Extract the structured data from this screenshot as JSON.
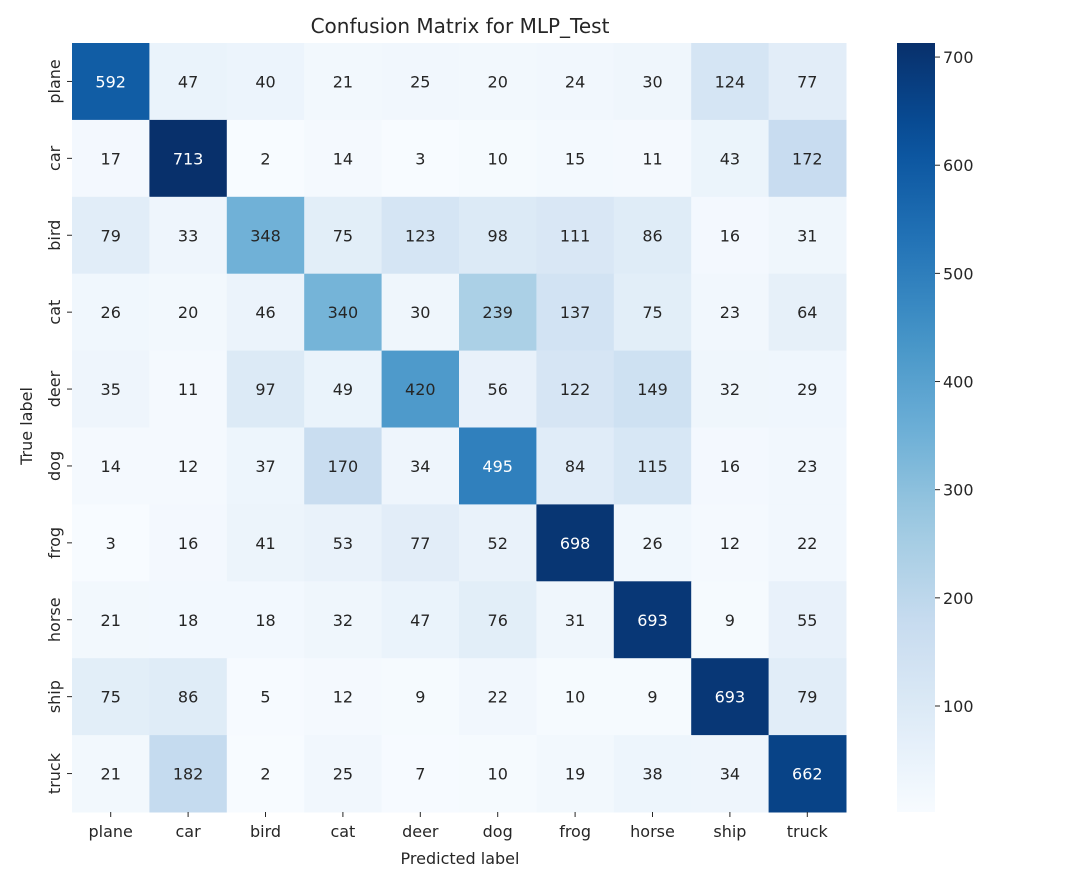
{
  "chart_data": {
    "type": "heatmap",
    "title": "Confusion Matrix for MLP_Test",
    "xlabel": "Predicted label",
    "ylabel": "True label",
    "x_categories": [
      "plane",
      "car",
      "bird",
      "cat",
      "deer",
      "dog",
      "frog",
      "horse",
      "ship",
      "truck"
    ],
    "y_categories": [
      "plane",
      "car",
      "bird",
      "cat",
      "deer",
      "dog",
      "frog",
      "horse",
      "ship",
      "truck"
    ],
    "values": [
      [
        592,
        47,
        40,
        21,
        25,
        20,
        24,
        30,
        124,
        77
      ],
      [
        17,
        713,
        2,
        14,
        3,
        10,
        15,
        11,
        43,
        172
      ],
      [
        79,
        33,
        348,
        75,
        123,
        98,
        111,
        86,
        16,
        31
      ],
      [
        26,
        20,
        46,
        340,
        30,
        239,
        137,
        75,
        23,
        64
      ],
      [
        35,
        11,
        97,
        49,
        420,
        56,
        122,
        149,
        32,
        29
      ],
      [
        14,
        12,
        37,
        170,
        34,
        495,
        84,
        115,
        16,
        23
      ],
      [
        3,
        16,
        41,
        53,
        77,
        52,
        698,
        26,
        12,
        22
      ],
      [
        21,
        18,
        18,
        32,
        47,
        76,
        31,
        693,
        9,
        55
      ],
      [
        75,
        86,
        5,
        12,
        9,
        22,
        10,
        9,
        693,
        79
      ],
      [
        21,
        182,
        2,
        25,
        7,
        10,
        19,
        38,
        34,
        662
      ]
    ],
    "colormap": "Blues",
    "color_low": "#f7fbff",
    "color_high": "#08306b",
    "vmin": 2,
    "vmax": 713,
    "colorbar_ticks": [
      100,
      200,
      300,
      400,
      500,
      600,
      700
    ],
    "grid": false,
    "legend": "colorbar-right"
  }
}
